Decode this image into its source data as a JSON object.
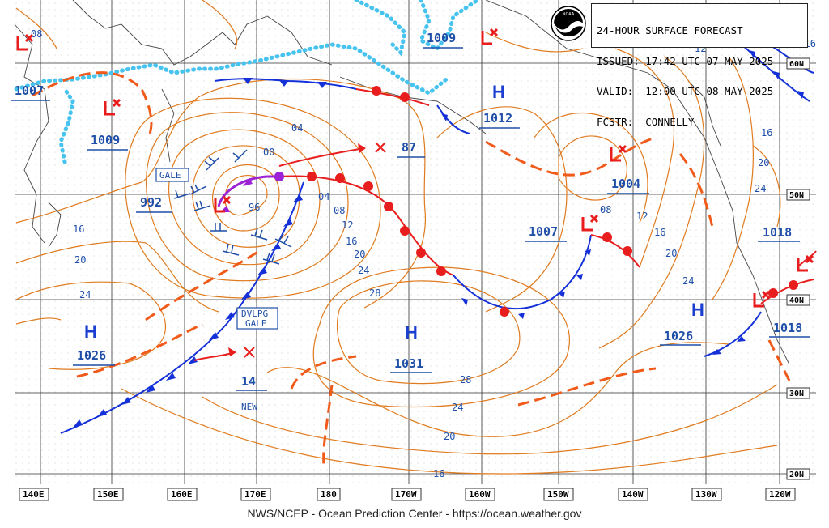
{
  "header": {
    "line1": "24-HOUR SURFACE FORECAST",
    "line2": "ISSUED: 17:42 UTC 07 MAY 2025",
    "line3": "VALID:  12:00 UTC 08 MAY 2025",
    "line4": "FCSTR:  CONNELLY"
  },
  "footer": "NWS/NCEP - Ocean Prediction Center - https://ocean.weather.gov",
  "logo": "noaa-logo",
  "colors": {
    "isobar": "#e07b1f",
    "high": "#1a3fd1",
    "low": "#e81e1e",
    "label": "#1f4fa8",
    "land": "#47c3ef",
    "cold_front": "#1430d8",
    "warm_front": "#e81e1e",
    "occluded": "#9b22d6"
  },
  "longitude_labels": [
    "140E",
    "150E",
    "160E",
    "170E",
    "180",
    "170W",
    "160W",
    "150W",
    "140W",
    "130W",
    "120W"
  ],
  "latitude_labels": [
    "60N",
    "50N",
    "40N",
    "30N",
    "20N"
  ],
  "highs": [
    {
      "letter": "H",
      "value": "1012"
    },
    {
      "letter": "H",
      "value": "1026"
    },
    {
      "letter": "H",
      "value": "1031"
    },
    {
      "letter": "H",
      "value": "1026"
    }
  ],
  "lows": [
    {
      "value": "1007"
    },
    {
      "value": "1009"
    },
    {
      "value": "992"
    },
    {
      "value": "87"
    },
    {
      "value": "1009"
    },
    {
      "value": "1004"
    },
    {
      "value": "1007"
    },
    {
      "value": "1018"
    },
    {
      "value": "1018"
    },
    {
      "value": "14"
    }
  ],
  "isobar_labels": [
    "08",
    "00",
    "04",
    "96",
    "04",
    "08",
    "12",
    "16",
    "20",
    "24",
    "28",
    "16",
    "20",
    "24",
    "28",
    "24",
    "20",
    "16",
    "08",
    "12",
    "16",
    "20",
    "24",
    "16",
    "20",
    "24",
    "12",
    "16"
  ],
  "warnings": {
    "gale": "GALE",
    "dvlpg_1": "DVLPG",
    "dvlpg_2": "GALE",
    "new": "NEW"
  }
}
